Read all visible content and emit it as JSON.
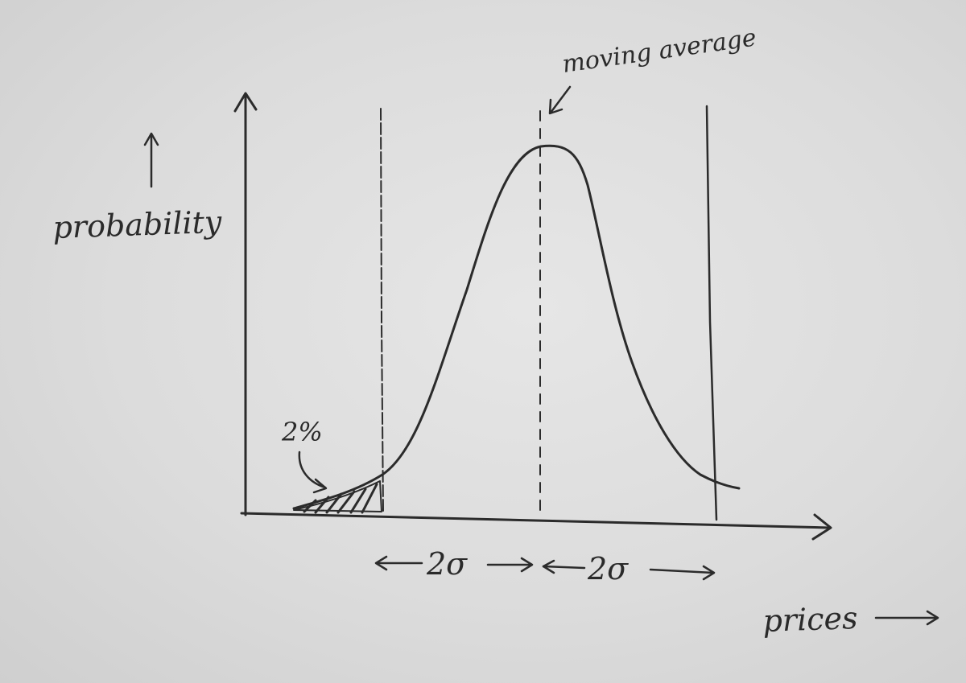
{
  "labels": {
    "y_axis": "probability",
    "x_axis": "prices",
    "mean_line": "moving average",
    "tail": "2%",
    "left_band": "2σ",
    "right_band": "2σ"
  },
  "colors": {
    "ink": "#2b2b2b",
    "paper": "#e3e3e3"
  },
  "icons": {
    "y_arrow": "up-arrow-icon",
    "x_arrow": "right-arrow-icon",
    "pointer": "curved-arrow-icon"
  }
}
